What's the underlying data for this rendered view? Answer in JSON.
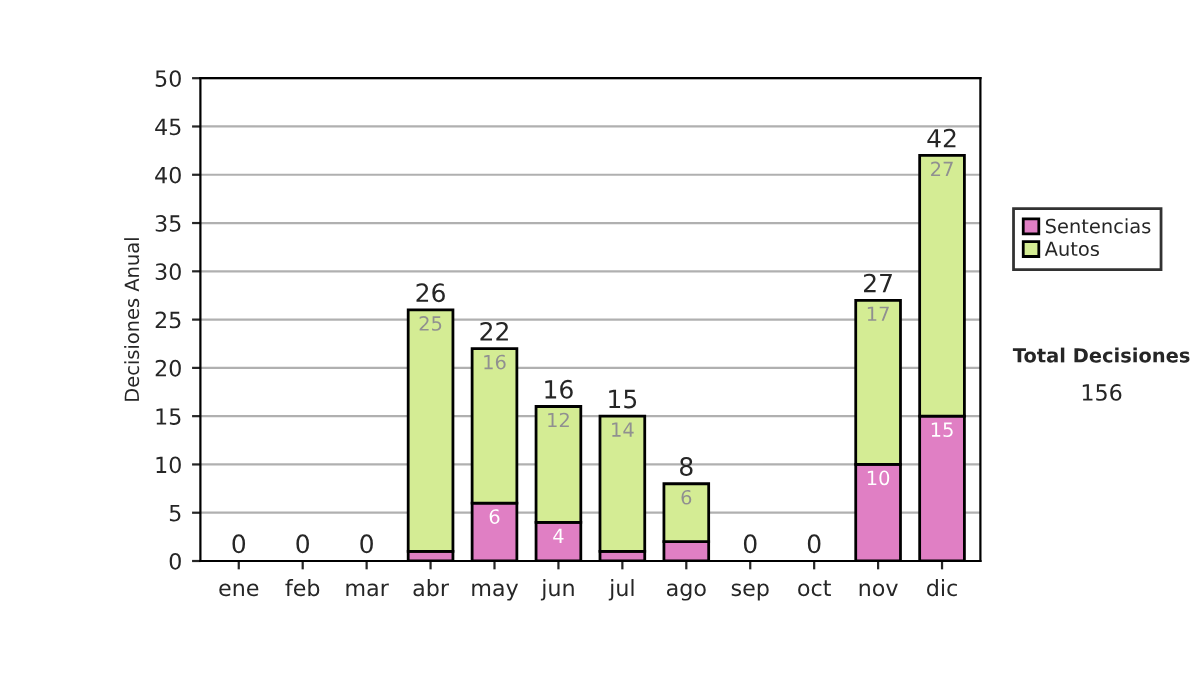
{
  "chart_data": {
    "type": "bar",
    "ylabel": "Decisiones Anual",
    "stacked": true,
    "categories": [
      "ene",
      "feb",
      "mar",
      "abr",
      "may",
      "jun",
      "jul",
      "ago",
      "sep",
      "oct",
      "nov",
      "dic"
    ],
    "series": [
      {
        "name": "Sentencias",
        "color": "#e07fc4",
        "values": [
          0,
          0,
          0,
          1,
          6,
          4,
          1,
          2,
          0,
          0,
          10,
          15
        ],
        "value_labels": [
          null,
          null,
          null,
          null,
          "6",
          "4",
          null,
          null,
          null,
          null,
          "10",
          "15"
        ]
      },
      {
        "name": "Autos",
        "color": "#d4ec94",
        "values": [
          0,
          0,
          0,
          25,
          16,
          12,
          14,
          6,
          0,
          0,
          17,
          27
        ],
        "value_labels": [
          null,
          null,
          null,
          "25",
          "16",
          "12",
          "14",
          "6",
          null,
          null,
          "17",
          "27"
        ]
      }
    ],
    "totals": [
      "0",
      "0",
      "0",
      "26",
      "22",
      "16",
      "15",
      "8",
      "0",
      "0",
      "27",
      "42"
    ],
    "ylim": [
      0,
      50
    ],
    "yticks": [
      0,
      5,
      10,
      15,
      20,
      25,
      30,
      35,
      40,
      45,
      50
    ],
    "grid": "y",
    "legend": "right",
    "annotations": [
      "Total Decisiones",
      "156"
    ]
  }
}
